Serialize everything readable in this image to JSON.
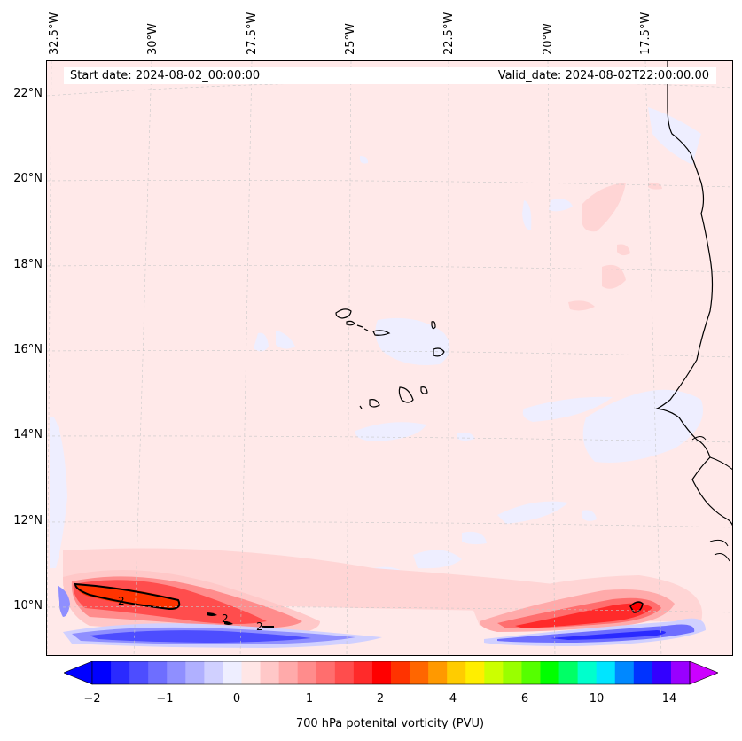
{
  "header": {
    "start_date": "Start date: 2024-08-02_00:00:00",
    "valid_date": "Valid_date: 2024-08-02T22:00:00.00"
  },
  "axes": {
    "longitude_labels": [
      "32.5°W",
      "30°W",
      "27.5°W",
      "25°W",
      "22.5°W",
      "20°W",
      "17.5°W"
    ],
    "latitude_labels": [
      "22°N",
      "20°N",
      "18°N",
      "16°N",
      "14°N",
      "12°N",
      "10°N"
    ]
  },
  "contour_labels": [
    "2",
    "2",
    "2"
  ],
  "colorbar": {
    "title": "700 hPa potenital vorticity (PVU)",
    "ticks": [
      "−2",
      "−1",
      "0",
      "1",
      "2",
      "4",
      "6",
      "10",
      "14"
    ],
    "colors": [
      "#0000ff",
      "#2a2aff",
      "#4d4dff",
      "#6e6eff",
      "#8f8fff",
      "#b0b0ff",
      "#d0d0ff",
      "#eeeeff",
      "#ffe6e6",
      "#ffc8c8",
      "#ffaaaa",
      "#ff8c8c",
      "#ff6e6e",
      "#ff4d4d",
      "#ff2a2a",
      "#ff0000",
      "#ff3300",
      "#ff6600",
      "#ff9900",
      "#ffcc00",
      "#ffee00",
      "#ccff00",
      "#99ff00",
      "#55ff00",
      "#00ff00",
      "#00ff66",
      "#00ffcc",
      "#00e5ff",
      "#0088ff",
      "#0033ff",
      "#3300ff",
      "#9900ff"
    ],
    "under_color": "#0000ff",
    "over_color": "#cc00ff"
  },
  "colors": {
    "background_field": "#ffe9e9",
    "weak_positive": "#ffd5d5",
    "weak_negative": "#eeeeff"
  }
}
